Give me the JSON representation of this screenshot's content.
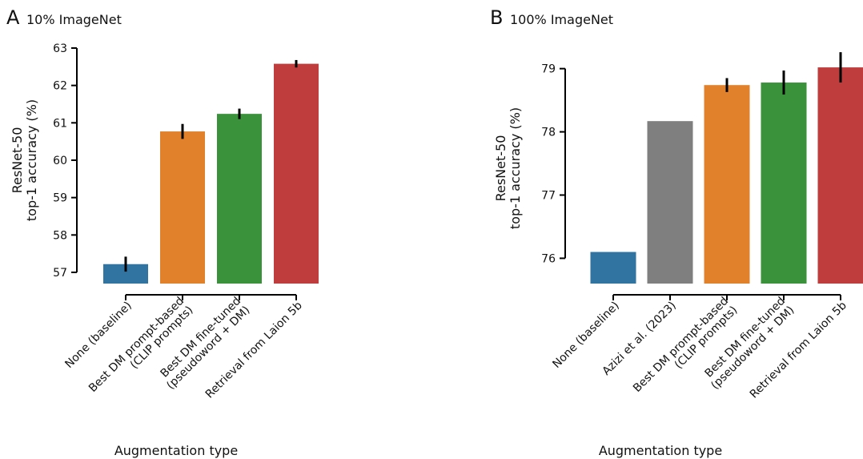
{
  "chart_data": [
    {
      "type": "bar",
      "panel_label": "A",
      "title": "10% ImageNet",
      "ylabel_line1": "ResNet-50",
      "ylabel_line2": "top-1 accuracy (%)",
      "xlabel": "Augmentation type",
      "ylim": [
        56.7,
        63.0
      ],
      "yticks": [
        57,
        58,
        59,
        60,
        61,
        62,
        63
      ],
      "grid": false,
      "categories": [
        [
          "None (baseline)"
        ],
        [
          "Best DM prompt-based",
          "(CLIP prompts)"
        ],
        [
          "Best DM fine-tuned",
          "(pseudoword + DM)"
        ],
        [
          "Retrieval from Laion 5b"
        ]
      ],
      "values": [
        57.22,
        60.77,
        61.24,
        62.58
      ],
      "errors": [
        0.2,
        0.2,
        0.14,
        0.1
      ],
      "colors": [
        "#3274a1",
        "#e1812c",
        "#3a923a",
        "#c03d3e"
      ]
    },
    {
      "type": "bar",
      "panel_label": "B",
      "title": "100% ImageNet",
      "ylabel_line1": "ResNet-50",
      "ylabel_line2": "top-1 accuracy (%)",
      "xlabel": "Augmentation type",
      "ylim": [
        75.6,
        79.3
      ],
      "yticks": [
        76,
        77,
        78,
        79
      ],
      "grid": false,
      "categories": [
        [
          "None (baseline)"
        ],
        [
          "Azizi et al. (2023)"
        ],
        [
          "Best DM prompt-based",
          "(CLIP prompts)"
        ],
        [
          "Best DM fine-tuned",
          "(pseudoword + DM)"
        ],
        [
          "Retrieval from Laion 5b"
        ]
      ],
      "values": [
        76.1,
        78.17,
        78.74,
        78.78,
        79.02
      ],
      "errors": [
        0,
        0,
        0.11,
        0.19,
        0.24
      ],
      "colors": [
        "#3274a1",
        "#7f7f7f",
        "#e1812c",
        "#3a923a",
        "#c03d3e"
      ]
    }
  ]
}
